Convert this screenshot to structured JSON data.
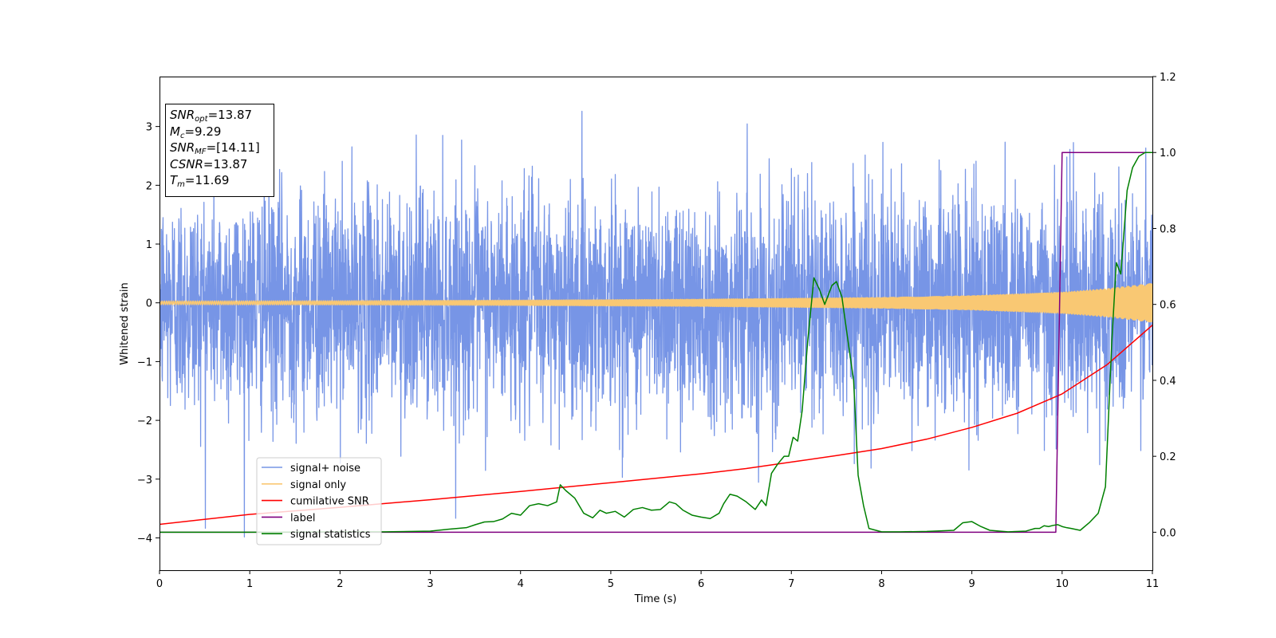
{
  "chart_data": {
    "type": "line",
    "xlabel": "Time (s)",
    "ylabel": "Whitened strain",
    "xlim": [
      0,
      11
    ],
    "ylim": [
      -4.55,
      3.85
    ],
    "y2lim": [
      -0.1,
      1.2
    ],
    "xticks": [
      "0",
      "1",
      "2",
      "3",
      "4",
      "5",
      "6",
      "7",
      "8",
      "9",
      "10",
      "11"
    ],
    "yticks": [
      "-4",
      "-3",
      "-2",
      "-1",
      "0",
      "1",
      "2",
      "3"
    ],
    "y2ticks": [
      "0.0",
      "0.2",
      "0.4",
      "0.6",
      "0.8",
      "1.0",
      "1.2"
    ],
    "legend_position": "lower-left",
    "legend": [
      {
        "label": "signal+ noise",
        "color": "#7795e6"
      },
      {
        "label": "signal only",
        "color": "#f9c873"
      },
      {
        "label": "cumilative SNR",
        "color": "#ff0000"
      },
      {
        "label": "label",
        "color": "#800080"
      },
      {
        "label": "signal statistics",
        "color": "#008000"
      }
    ],
    "annotation": {
      "snr_opt": {
        "symbol": "SNR",
        "sub": "opt",
        "value": "=13.87"
      },
      "mc": {
        "symbol": "M",
        "sub": "c",
        "value": "=9.29"
      },
      "snr_mf": {
        "symbol": "SNR",
        "sub": "MF",
        "value": "=[14.11]"
      },
      "csnr": {
        "symbol": "CSNR",
        "value": "=13.87"
      },
      "tm": {
        "symbol": "T",
        "sub": "m",
        "value": "=11.69"
      }
    },
    "series": [
      {
        "name": "signal+ noise",
        "axis": "left",
        "color": "#7795e6",
        "kind": "noise",
        "sigma": 1.0,
        "range": [
          -4.2,
          3.5
        ]
      },
      {
        "name": "signal only",
        "axis": "left",
        "color": "#f9c873",
        "kind": "chirp",
        "amplitude": {
          "x": [
            0,
            2,
            4,
            6,
            8,
            9,
            10,
            10.5,
            11
          ],
          "y": [
            0.03,
            0.035,
            0.045,
            0.06,
            0.09,
            0.12,
            0.18,
            0.24,
            0.33
          ]
        }
      },
      {
        "name": "cumilative SNR",
        "axis": "left",
        "color": "#ff0000",
        "x": [
          0,
          1,
          2,
          3,
          4,
          5,
          6,
          6.5,
          7,
          7.5,
          8,
          8.5,
          9,
          9.5,
          10,
          10.5,
          11
        ],
        "y": [
          -3.77,
          -3.6,
          -3.48,
          -3.35,
          -3.21,
          -3.06,
          -2.91,
          -2.82,
          -2.71,
          -2.6,
          -2.48,
          -2.32,
          -2.12,
          -1.88,
          -1.55,
          -1.05,
          -0.38
        ]
      },
      {
        "name": "label",
        "axis": "right",
        "color": "#800080",
        "x": [
          0,
          9.93,
          10.0,
          11
        ],
        "y": [
          0,
          0,
          1,
          1
        ]
      },
      {
        "name": "signal statistics",
        "axis": "right",
        "color": "#008000",
        "x": [
          0,
          1,
          2,
          2.5,
          3.0,
          3.2,
          3.4,
          3.5,
          3.6,
          3.7,
          3.8,
          3.9,
          4.0,
          4.1,
          4.2,
          4.3,
          4.4,
          4.44,
          4.5,
          4.6,
          4.7,
          4.8,
          4.88,
          4.95,
          5.05,
          5.15,
          5.25,
          5.35,
          5.45,
          5.55,
          5.65,
          5.72,
          5.8,
          5.9,
          6.0,
          6.1,
          6.2,
          6.25,
          6.32,
          6.4,
          6.5,
          6.6,
          6.67,
          6.72,
          6.78,
          6.85,
          6.92,
          6.97,
          7.02,
          7.07,
          7.12,
          7.18,
          7.25,
          7.31,
          7.37,
          7.45,
          7.5,
          7.56,
          7.63,
          7.69,
          7.74,
          7.8,
          7.86,
          8.0,
          8.2,
          8.5,
          8.8,
          8.9,
          9.0,
          9.1,
          9.2,
          9.4,
          9.6,
          9.7,
          9.75,
          9.8,
          9.85,
          9.9,
          9.95,
          10.0,
          10.05,
          10.1,
          10.2,
          10.3,
          10.4,
          10.48,
          10.55,
          10.6,
          10.65,
          10.72,
          10.78,
          10.85,
          10.92,
          11.0
        ],
        "y": [
          0,
          0,
          0.001,
          0.001,
          0.003,
          0.008,
          0.012,
          0.02,
          0.027,
          0.028,
          0.035,
          0.05,
          0.045,
          0.07,
          0.075,
          0.07,
          0.08,
          0.125,
          0.11,
          0.09,
          0.05,
          0.038,
          0.058,
          0.05,
          0.055,
          0.04,
          0.06,
          0.065,
          0.058,
          0.06,
          0.08,
          0.075,
          0.058,
          0.045,
          0.04,
          0.036,
          0.05,
          0.075,
          0.1,
          0.095,
          0.08,
          0.06,
          0.085,
          0.07,
          0.155,
          0.18,
          0.2,
          0.2,
          0.25,
          0.24,
          0.32,
          0.5,
          0.67,
          0.64,
          0.6,
          0.65,
          0.66,
          0.62,
          0.5,
          0.4,
          0.15,
          0.07,
          0.01,
          0.001,
          0.001,
          0.002,
          0.005,
          0.025,
          0.028,
          0.015,
          0.005,
          0.001,
          0.003,
          0.01,
          0.01,
          0.017,
          0.015,
          0.018,
          0.02,
          0.015,
          0.012,
          0.01,
          0.005,
          0.025,
          0.05,
          0.12,
          0.5,
          0.71,
          0.68,
          0.9,
          0.96,
          0.99,
          1.0,
          1.0
        ]
      }
    ]
  }
}
